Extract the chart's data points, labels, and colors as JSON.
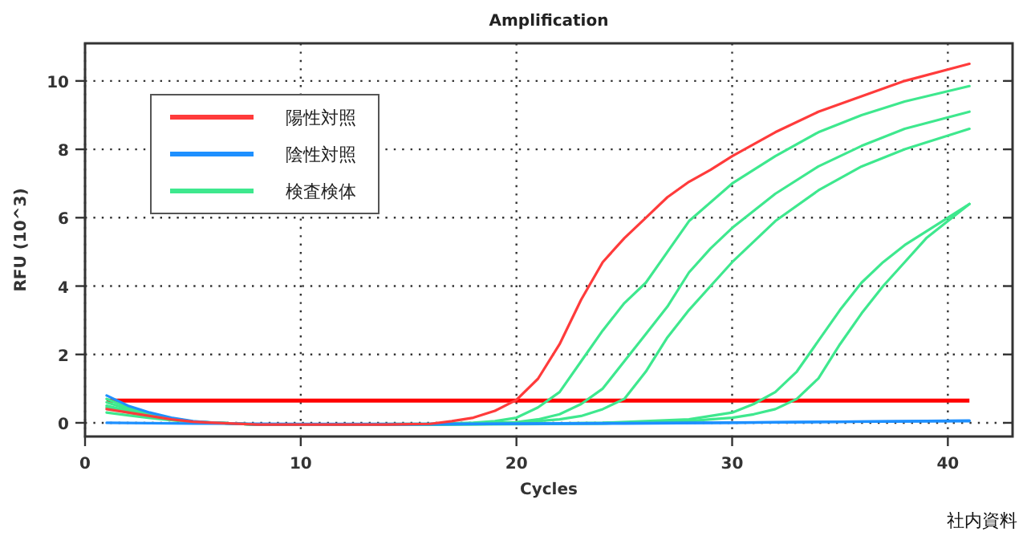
{
  "chart_data": {
    "type": "line",
    "title": "Amplification",
    "xlabel": "Cycles",
    "ylabel": "RFU (10^3)",
    "xlim": [
      0,
      43
    ],
    "ylim": [
      -0.4,
      11.1
    ],
    "xticks": [
      0,
      10,
      20,
      30,
      40
    ],
    "yticks": [
      0,
      2,
      4,
      6,
      8,
      10
    ],
    "grid": true,
    "legend": "top left",
    "series": [
      {
        "name": "陽性対照",
        "color": "#ff3b3b",
        "x": [
          1,
          2,
          3,
          4,
          5,
          6,
          8,
          10,
          12,
          14,
          16,
          17,
          18,
          19,
          20,
          21,
          22,
          23,
          24,
          25,
          26,
          27,
          28,
          29,
          30,
          32,
          34,
          36,
          38,
          41
        ],
        "values": [
          0.4,
          0.3,
          0.2,
          0.1,
          0.03,
          0,
          -0.05,
          -0.05,
          -0.05,
          -0.05,
          -0.03,
          0.05,
          0.15,
          0.35,
          0.67,
          1.29,
          2.3,
          3.6,
          4.7,
          5.4,
          6.0,
          6.6,
          7.05,
          7.4,
          7.8,
          8.5,
          9.1,
          9.55,
          10.0,
          10.5
        ]
      },
      {
        "name": "陰性対照",
        "color": "#1e90ff",
        "x": [
          1,
          2,
          3,
          4,
          5,
          6,
          8,
          10,
          15,
          20,
          25,
          30,
          35,
          41
        ],
        "values": [
          0.8,
          0.5,
          0.3,
          0.15,
          0.05,
          0,
          -0.05,
          -0.05,
          -0.05,
          -0.03,
          -0.02,
          0,
          0.03,
          0.07
        ]
      },
      {
        "color": "#1e90ff",
        "x": [
          1,
          5,
          10,
          15,
          20,
          25,
          30,
          35,
          41
        ],
        "values": [
          0,
          -0.02,
          -0.03,
          -0.03,
          -0.02,
          -0.01,
          0.01,
          0.03,
          0.05
        ]
      },
      {
        "name": "検査検体",
        "color": "#3ee88e",
        "x": [
          1,
          2,
          3,
          4,
          5,
          6,
          8,
          16,
          18,
          19,
          20,
          21,
          22,
          23,
          24,
          25,
          26,
          27,
          28,
          30,
          32,
          34,
          36,
          38,
          41
        ],
        "values": [
          0.6,
          0.4,
          0.25,
          0.12,
          0.04,
          0,
          -0.05,
          -0.03,
          0,
          0.05,
          0.15,
          0.45,
          0.9,
          1.8,
          2.7,
          3.5,
          4.1,
          5.0,
          5.9,
          7.0,
          7.8,
          8.5,
          9.0,
          9.4,
          9.85
        ]
      },
      {
        "color": "#3ee88e",
        "x": [
          1,
          2,
          3,
          4,
          5,
          6,
          8,
          16,
          20,
          21,
          22,
          23,
          24,
          25,
          26,
          27,
          28,
          29,
          30,
          32,
          34,
          36,
          38,
          41
        ],
        "values": [
          0.5,
          0.35,
          0.2,
          0.1,
          0.03,
          0,
          -0.05,
          -0.04,
          0.02,
          0.1,
          0.25,
          0.55,
          1.0,
          1.8,
          2.6,
          3.4,
          4.4,
          5.1,
          5.7,
          6.7,
          7.5,
          8.1,
          8.6,
          9.1
        ]
      },
      {
        "color": "#3ee88e",
        "x": [
          1,
          2,
          3,
          4,
          5,
          6,
          8,
          16,
          20,
          22,
          23,
          24,
          25,
          26,
          27,
          28,
          29,
          30,
          32,
          34,
          36,
          38,
          41
        ],
        "values": [
          0.3,
          0.22,
          0.14,
          0.08,
          0.02,
          0,
          -0.05,
          -0.05,
          0,
          0.1,
          0.2,
          0.4,
          0.7,
          1.5,
          2.5,
          3.3,
          4.0,
          4.7,
          5.9,
          6.8,
          7.5,
          8.0,
          8.6
        ]
      },
      {
        "color": "#3ee88e",
        "x": [
          1,
          2,
          3,
          4,
          5,
          6,
          8,
          16,
          20,
          24,
          28,
          29,
          30,
          31,
          32,
          33,
          34,
          35,
          36,
          37,
          38,
          39,
          40,
          41
        ],
        "values": [
          0.7,
          0.45,
          0.28,
          0.13,
          0.04,
          0,
          -0.05,
          -0.05,
          -0.03,
          0,
          0.1,
          0.2,
          0.3,
          0.55,
          0.9,
          1.5,
          2.4,
          3.3,
          4.1,
          4.7,
          5.2,
          5.6,
          6.0,
          6.4
        ]
      },
      {
        "color": "#3ee88e",
        "x": [
          1,
          2,
          3,
          4,
          5,
          6,
          8,
          16,
          20,
          24,
          28,
          29,
          30,
          31,
          32,
          33,
          34,
          35,
          36,
          37,
          38,
          39,
          40,
          41
        ],
        "values": [
          0.45,
          0.3,
          0.18,
          0.09,
          0.02,
          0,
          -0.05,
          -0.05,
          -0.04,
          -0.02,
          0.05,
          0.1,
          0.15,
          0.25,
          0.4,
          0.7,
          1.3,
          2.3,
          3.2,
          4.0,
          4.7,
          5.4,
          5.9,
          6.4
        ]
      }
    ],
    "ref_lines": [
      {
        "axis": "y",
        "value": 0.65,
        "color": "#ff0000"
      }
    ],
    "annotations": [
      "社内資料"
    ]
  }
}
